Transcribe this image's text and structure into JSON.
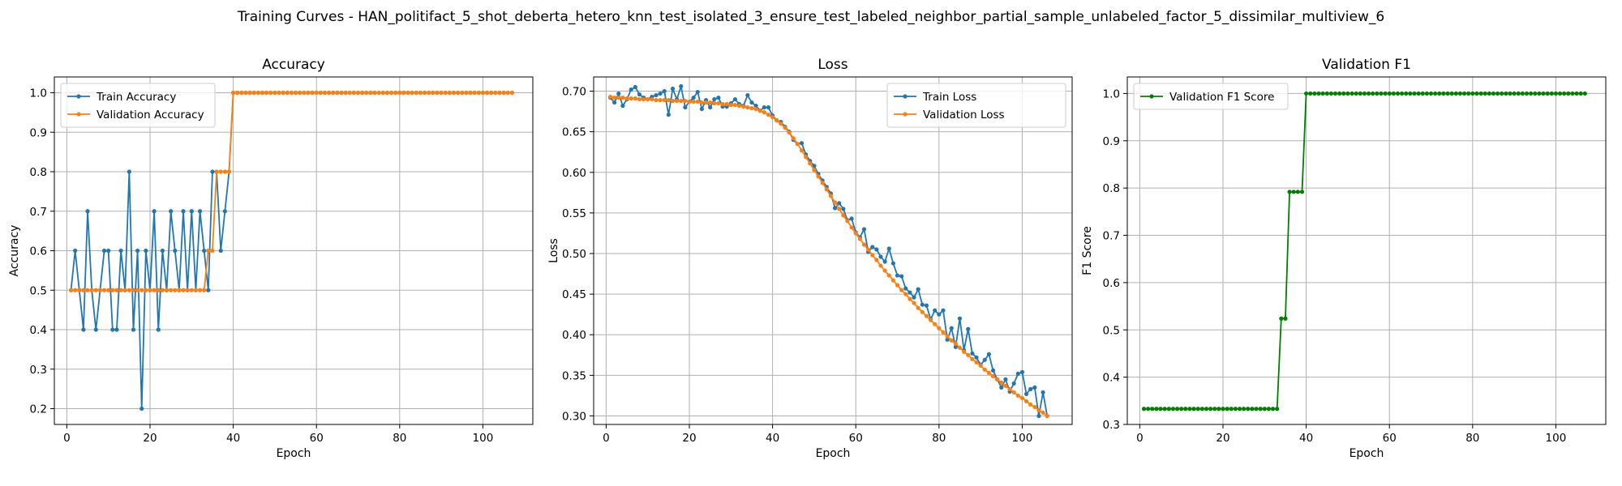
{
  "figure": {
    "title": "Training Curves - HAN_politifact_5_shot_deberta_hetero_knn_test_isolated_3_ensure_test_labeled_neighbor_partial_sample_unlabeled_factor_5_dissimilar_multiview_6"
  },
  "chart_data": [
    {
      "type": "line",
      "title": "Accuracy",
      "xlabel": "Epoch",
      "ylabel": "Accuracy",
      "xlim": [
        -3,
        112
      ],
      "ylim": [
        0.16,
        1.04
      ],
      "xticks": [
        0,
        20,
        40,
        60,
        80,
        100
      ],
      "yticks": [
        0.2,
        0.3,
        0.4,
        0.5,
        0.6,
        0.7,
        0.8,
        0.9,
        1.0
      ],
      "ytick_labels": [
        "0.2",
        "0.3",
        "0.4",
        "0.5",
        "0.6",
        "0.7",
        "0.8",
        "0.9",
        "1.0"
      ],
      "grid": true,
      "legend_position": "upper left",
      "series": [
        {
          "name": "Train Accuracy",
          "color": "#1f77b4",
          "x_start": 1,
          "values": [
            0.5,
            0.6,
            0.5,
            0.4,
            0.7,
            0.5,
            0.4,
            0.5,
            0.6,
            0.6,
            0.4,
            0.4,
            0.6,
            0.5,
            0.8,
            0.4,
            0.6,
            0.2,
            0.6,
            0.5,
            0.7,
            0.4,
            0.6,
            0.5,
            0.7,
            0.6,
            0.5,
            0.7,
            0.5,
            0.7,
            0.5,
            0.7,
            0.6,
            0.5,
            0.8,
            0.8,
            0.6,
            0.7,
            0.8,
            1.0,
            1.0,
            1.0,
            1.0,
            1.0,
            1.0,
            1.0,
            1.0,
            1.0,
            1.0,
            1.0,
            1.0,
            1.0,
            1.0,
            1.0,
            1.0,
            1.0,
            1.0,
            1.0,
            1.0,
            1.0,
            1.0,
            1.0,
            1.0,
            1.0,
            1.0,
            1.0,
            1.0,
            1.0,
            1.0,
            1.0,
            1.0,
            1.0,
            1.0,
            1.0,
            1.0,
            1.0,
            1.0,
            1.0,
            1.0,
            1.0,
            1.0,
            1.0,
            1.0,
            1.0,
            1.0,
            1.0,
            1.0,
            1.0,
            1.0,
            1.0,
            1.0,
            1.0,
            1.0,
            1.0,
            1.0,
            1.0,
            1.0,
            1.0,
            1.0,
            1.0,
            1.0,
            1.0,
            1.0,
            1.0,
            1.0,
            1.0,
            1.0
          ]
        },
        {
          "name": "Validation Accuracy",
          "color": "#ff7f0e",
          "x_start": 1,
          "values": [
            0.5,
            0.5,
            0.5,
            0.5,
            0.5,
            0.5,
            0.5,
            0.5,
            0.5,
            0.5,
            0.5,
            0.5,
            0.5,
            0.5,
            0.5,
            0.5,
            0.5,
            0.5,
            0.5,
            0.5,
            0.5,
            0.5,
            0.5,
            0.5,
            0.5,
            0.5,
            0.5,
            0.5,
            0.5,
            0.5,
            0.5,
            0.5,
            0.5,
            0.6,
            0.6,
            0.8,
            0.8,
            0.8,
            0.8,
            1.0,
            1.0,
            1.0,
            1.0,
            1.0,
            1.0,
            1.0,
            1.0,
            1.0,
            1.0,
            1.0,
            1.0,
            1.0,
            1.0,
            1.0,
            1.0,
            1.0,
            1.0,
            1.0,
            1.0,
            1.0,
            1.0,
            1.0,
            1.0,
            1.0,
            1.0,
            1.0,
            1.0,
            1.0,
            1.0,
            1.0,
            1.0,
            1.0,
            1.0,
            1.0,
            1.0,
            1.0,
            1.0,
            1.0,
            1.0,
            1.0,
            1.0,
            1.0,
            1.0,
            1.0,
            1.0,
            1.0,
            1.0,
            1.0,
            1.0,
            1.0,
            1.0,
            1.0,
            1.0,
            1.0,
            1.0,
            1.0,
            1.0,
            1.0,
            1.0,
            1.0,
            1.0,
            1.0,
            1.0,
            1.0,
            1.0,
            1.0,
            1.0
          ]
        }
      ]
    },
    {
      "type": "line",
      "title": "Loss",
      "xlabel": "Epoch",
      "ylabel": "Loss",
      "xlim": [
        -3,
        112
      ],
      "ylim": [
        0.2895,
        0.7175
      ],
      "xticks": [
        0,
        20,
        40,
        60,
        80,
        100
      ],
      "yticks": [
        0.3,
        0.35,
        0.4,
        0.45,
        0.5,
        0.55,
        0.6,
        0.65,
        0.7
      ],
      "ytick_labels": [
        "0.30",
        "0.35",
        "0.40",
        "0.45",
        "0.50",
        "0.55",
        "0.60",
        "0.65",
        "0.70"
      ],
      "grid": true,
      "legend_position": "upper right",
      "series": [
        {
          "name": "Train Loss",
          "color": "#1f77b4",
          "x_start": 1,
          "values": [
            0.692,
            0.686,
            0.697,
            0.682,
            0.69,
            0.702,
            0.705,
            0.696,
            0.692,
            0.69,
            0.693,
            0.695,
            0.697,
            0.7,
            0.671,
            0.703,
            0.69,
            0.706,
            0.68,
            0.687,
            0.692,
            0.699,
            0.678,
            0.689,
            0.68,
            0.69,
            0.692,
            0.681,
            0.681,
            0.685,
            0.69,
            0.684,
            0.682,
            0.695,
            0.686,
            0.682,
            0.676,
            0.68,
            0.68,
            0.67,
            0.664,
            0.662,
            0.656,
            0.65,
            0.64,
            0.635,
            0.636,
            0.622,
            0.614,
            0.608,
            0.598,
            0.59,
            0.582,
            0.574,
            0.556,
            0.562,
            0.555,
            0.541,
            0.543,
            0.526,
            0.52,
            0.53,
            0.502,
            0.508,
            0.505,
            0.496,
            0.49,
            0.506,
            0.488,
            0.473,
            0.472,
            0.457,
            0.452,
            0.446,
            0.456,
            0.437,
            0.436,
            0.419,
            0.43,
            0.425,
            0.43,
            0.394,
            0.408,
            0.385,
            0.42,
            0.381,
            0.407,
            0.377,
            0.372,
            0.363,
            0.369,
            0.376,
            0.356,
            0.345,
            0.335,
            0.345,
            0.33,
            0.34,
            0.352,
            0.354,
            0.327,
            0.333,
            0.335,
            0.3,
            0.329,
            0.3
          ]
        },
        {
          "name": "Validation Loss",
          "color": "#ff7f0e",
          "x_start": 1,
          "values": [
            0.693,
            0.692,
            0.692,
            0.692,
            0.691,
            0.691,
            0.691,
            0.69,
            0.69,
            0.69,
            0.69,
            0.689,
            0.689,
            0.689,
            0.689,
            0.688,
            0.688,
            0.688,
            0.688,
            0.687,
            0.687,
            0.687,
            0.686,
            0.686,
            0.686,
            0.685,
            0.685,
            0.684,
            0.684,
            0.683,
            0.683,
            0.682,
            0.681,
            0.68,
            0.679,
            0.678,
            0.676,
            0.674,
            0.671,
            0.668,
            0.664,
            0.66,
            0.655,
            0.649,
            0.642,
            0.635,
            0.627,
            0.619,
            0.611,
            0.603,
            0.595,
            0.587,
            0.579,
            0.571,
            0.563,
            0.555,
            0.547,
            0.54,
            0.532,
            0.525,
            0.518,
            0.511,
            0.505,
            0.498,
            0.492,
            0.485,
            0.479,
            0.473,
            0.467,
            0.461,
            0.455,
            0.45,
            0.444,
            0.439,
            0.433,
            0.428,
            0.423,
            0.418,
            0.413,
            0.408,
            0.403,
            0.398,
            0.393,
            0.389,
            0.384,
            0.379,
            0.375,
            0.37,
            0.366,
            0.362,
            0.357,
            0.353,
            0.349,
            0.345,
            0.341,
            0.337,
            0.333,
            0.329,
            0.325,
            0.322,
            0.318,
            0.314,
            0.311,
            0.307,
            0.304,
            0.3
          ]
        }
      ]
    },
    {
      "type": "line",
      "title": "Validation F1",
      "xlabel": "Epoch",
      "ylabel": "F1 Score",
      "xlim": [
        -3,
        112
      ],
      "ylim": [
        0.3,
        1.035
      ],
      "xticks": [
        0,
        20,
        40,
        60,
        80,
        100
      ],
      "yticks": [
        0.3,
        0.4,
        0.5,
        0.6,
        0.7,
        0.8,
        0.9,
        1.0
      ],
      "ytick_labels": [
        "0.3",
        "0.4",
        "0.5",
        "0.6",
        "0.7",
        "0.8",
        "0.9",
        "1.0"
      ],
      "grid": true,
      "legend_position": "upper left",
      "series": [
        {
          "name": "Validation F1 Score",
          "color": "#008000",
          "x_start": 1,
          "values": [
            0.333,
            0.333,
            0.333,
            0.333,
            0.333,
            0.333,
            0.333,
            0.333,
            0.333,
            0.333,
            0.333,
            0.333,
            0.333,
            0.333,
            0.333,
            0.333,
            0.333,
            0.333,
            0.333,
            0.333,
            0.333,
            0.333,
            0.333,
            0.333,
            0.333,
            0.333,
            0.333,
            0.333,
            0.333,
            0.333,
            0.333,
            0.333,
            0.333,
            0.524,
            0.524,
            0.792,
            0.792,
            0.792,
            0.792,
            1.0,
            1.0,
            1.0,
            1.0,
            1.0,
            1.0,
            1.0,
            1.0,
            1.0,
            1.0,
            1.0,
            1.0,
            1.0,
            1.0,
            1.0,
            1.0,
            1.0,
            1.0,
            1.0,
            1.0,
            1.0,
            1.0,
            1.0,
            1.0,
            1.0,
            1.0,
            1.0,
            1.0,
            1.0,
            1.0,
            1.0,
            1.0,
            1.0,
            1.0,
            1.0,
            1.0,
            1.0,
            1.0,
            1.0,
            1.0,
            1.0,
            1.0,
            1.0,
            1.0,
            1.0,
            1.0,
            1.0,
            1.0,
            1.0,
            1.0,
            1.0,
            1.0,
            1.0,
            1.0,
            1.0,
            1.0,
            1.0,
            1.0,
            1.0,
            1.0,
            1.0,
            1.0,
            1.0,
            1.0,
            1.0,
            1.0,
            1.0,
            1.0
          ]
        }
      ]
    }
  ]
}
